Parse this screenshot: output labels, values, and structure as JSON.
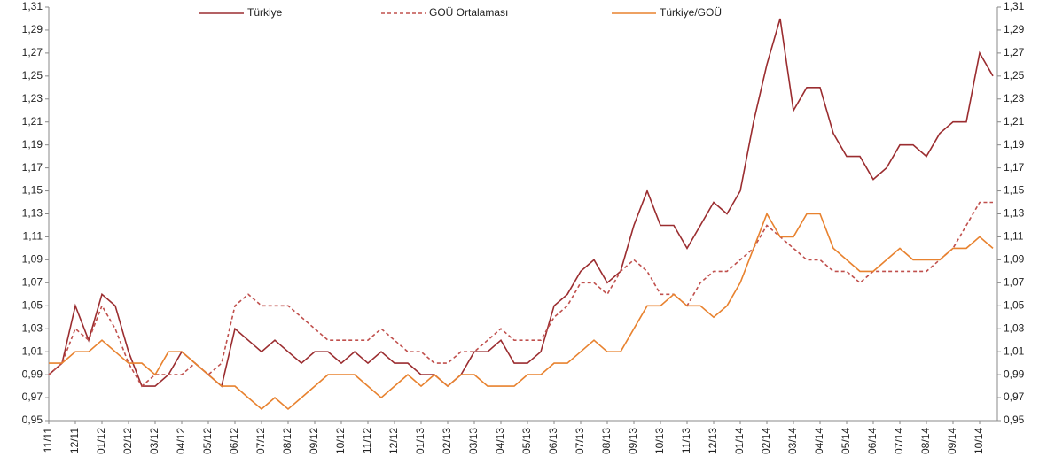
{
  "chart_data": {
    "type": "line",
    "legend": "top",
    "grid": false,
    "categories": [
      "11/11",
      null,
      "12/11",
      null,
      "01/12",
      null,
      "02/12",
      null,
      "03/12",
      null,
      "04/12",
      null,
      "05/12",
      null,
      "06/12",
      null,
      "07/12",
      null,
      "08/12",
      null,
      "09/12",
      null,
      "10/12",
      null,
      "11/12",
      null,
      "12/12",
      null,
      "01/13",
      null,
      "02/13",
      null,
      "03/13",
      null,
      "04/13",
      null,
      "05/13",
      null,
      "06/13",
      null,
      "07/13",
      null,
      "08/13",
      null,
      "09/13",
      null,
      "10/13",
      null,
      "11/13",
      null,
      "12/13",
      null,
      "01/14",
      null,
      "02/14",
      null,
      "03/14",
      null,
      "04/14",
      null,
      "05/14",
      null,
      "06/14",
      null,
      "07/14",
      null,
      "08/14",
      null,
      "09/14",
      null,
      "10/14",
      null
    ],
    "series": [
      {
        "name": "Türkiye",
        "color": "#9b2d30",
        "dash": false,
        "values": [
          0.99,
          1.0,
          1.05,
          1.02,
          1.06,
          1.05,
          1.01,
          0.98,
          0.98,
          0.99,
          1.01,
          1.0,
          0.99,
          0.98,
          1.03,
          1.02,
          1.01,
          1.02,
          1.01,
          1.0,
          1.01,
          1.01,
          1.0,
          1.01,
          1.0,
          1.01,
          1.0,
          1.0,
          0.99,
          0.99,
          0.98,
          0.99,
          1.01,
          1.01,
          1.02,
          1.0,
          1.0,
          1.01,
          1.05,
          1.06,
          1.08,
          1.09,
          1.07,
          1.08,
          1.12,
          1.15,
          1.12,
          1.12,
          1.1,
          1.12,
          1.14,
          1.13,
          1.15,
          1.21,
          1.26,
          1.3,
          1.22,
          1.24,
          1.24,
          1.2,
          1.18,
          1.18,
          1.16,
          1.17,
          1.19,
          1.19,
          1.18,
          1.2,
          1.21,
          1.21,
          1.27,
          1.25
        ]
      },
      {
        "name": "GOÜ Ortalaması",
        "color": "#c0504d",
        "dash": true,
        "values": [
          0.99,
          1.0,
          1.03,
          1.02,
          1.05,
          1.03,
          1.0,
          0.98,
          0.99,
          0.99,
          0.99,
          1.0,
          0.99,
          1.0,
          1.05,
          1.06,
          1.05,
          1.05,
          1.05,
          1.04,
          1.03,
          1.02,
          1.02,
          1.02,
          1.02,
          1.03,
          1.02,
          1.01,
          1.01,
          1.0,
          1.0,
          1.01,
          1.01,
          1.02,
          1.03,
          1.02,
          1.02,
          1.02,
          1.04,
          1.05,
          1.07,
          1.07,
          1.06,
          1.08,
          1.09,
          1.08,
          1.06,
          1.06,
          1.05,
          1.07,
          1.08,
          1.08,
          1.09,
          1.1,
          1.12,
          1.11,
          1.1,
          1.09,
          1.09,
          1.08,
          1.08,
          1.07,
          1.08,
          1.08,
          1.08,
          1.08,
          1.08,
          1.09,
          1.1,
          1.12,
          1.14,
          1.14
        ]
      },
      {
        "name": "Türkiye/GOÜ",
        "color": "#e8822f",
        "dash": false,
        "values": [
          1.0,
          1.0,
          1.01,
          1.01,
          1.02,
          1.01,
          1.0,
          1.0,
          0.99,
          1.01,
          1.01,
          1.0,
          0.99,
          0.98,
          0.98,
          0.97,
          0.96,
          0.97,
          0.96,
          0.97,
          0.98,
          0.99,
          0.99,
          0.99,
          0.98,
          0.97,
          0.98,
          0.99,
          0.98,
          0.99,
          0.98,
          0.99,
          0.99,
          0.98,
          0.98,
          0.98,
          0.99,
          0.99,
          1.0,
          1.0,
          1.01,
          1.02,
          1.01,
          1.01,
          1.03,
          1.05,
          1.05,
          1.06,
          1.05,
          1.05,
          1.04,
          1.05,
          1.07,
          1.1,
          1.13,
          1.11,
          1.11,
          1.13,
          1.13,
          1.1,
          1.09,
          1.08,
          1.08,
          1.09,
          1.1,
          1.09,
          1.09,
          1.09,
          1.1,
          1.1,
          1.11,
          1.1
        ]
      }
    ],
    "ylim": [
      0.95,
      1.31
    ],
    "yticks": [
      {
        "value": 0.95,
        "label": "0,95"
      },
      {
        "value": 0.97,
        "label": "0,97"
      },
      {
        "value": 0.99,
        "label": "0,99"
      },
      {
        "value": 1.01,
        "label": "1,01"
      },
      {
        "value": 1.03,
        "label": "1,03"
      },
      {
        "value": 1.05,
        "label": "1,05"
      },
      {
        "value": 1.07,
        "label": "1,07"
      },
      {
        "value": 1.09,
        "label": "1,09"
      },
      {
        "value": 1.11,
        "label": "1,11"
      },
      {
        "value": 1.13,
        "label": "1,13"
      },
      {
        "value": 1.15,
        "label": "1,15"
      },
      {
        "value": 1.17,
        "label": "1,17"
      },
      {
        "value": 1.19,
        "label": "1,19"
      },
      {
        "value": 1.21,
        "label": "1,21"
      },
      {
        "value": 1.23,
        "label": "1,23"
      },
      {
        "value": 1.25,
        "label": "1,25"
      },
      {
        "value": 1.27,
        "label": "1,27"
      },
      {
        "value": 1.29,
        "label": "1,29"
      },
      {
        "value": 1.31,
        "label": "1,31"
      }
    ],
    "y2lim": [
      0.95,
      1.31
    ],
    "y2ticks": [
      {
        "value": 0.95,
        "label": "0,95"
      },
      {
        "value": 0.97,
        "label": "0,97"
      },
      {
        "value": 0.99,
        "label": "0,99"
      },
      {
        "value": 1.01,
        "label": "1,01"
      },
      {
        "value": 1.03,
        "label": "1,03"
      },
      {
        "value": 1.05,
        "label": "1,05"
      },
      {
        "value": 1.07,
        "label": "1,07"
      },
      {
        "value": 1.09,
        "label": "1,09"
      },
      {
        "value": 1.11,
        "label": "1,11"
      },
      {
        "value": 1.13,
        "label": "1,13"
      },
      {
        "value": 1.15,
        "label": "1,15"
      },
      {
        "value": 1.17,
        "label": "1,17"
      },
      {
        "value": 1.19,
        "label": "1,19"
      },
      {
        "value": 1.21,
        "label": "1,21"
      },
      {
        "value": 1.23,
        "label": "1,23"
      },
      {
        "value": 1.25,
        "label": "1,25"
      },
      {
        "value": 1.27,
        "label": "1,27"
      },
      {
        "value": 1.29,
        "label": "1,29"
      },
      {
        "value": 1.31,
        "label": "1,31"
      }
    ]
  }
}
